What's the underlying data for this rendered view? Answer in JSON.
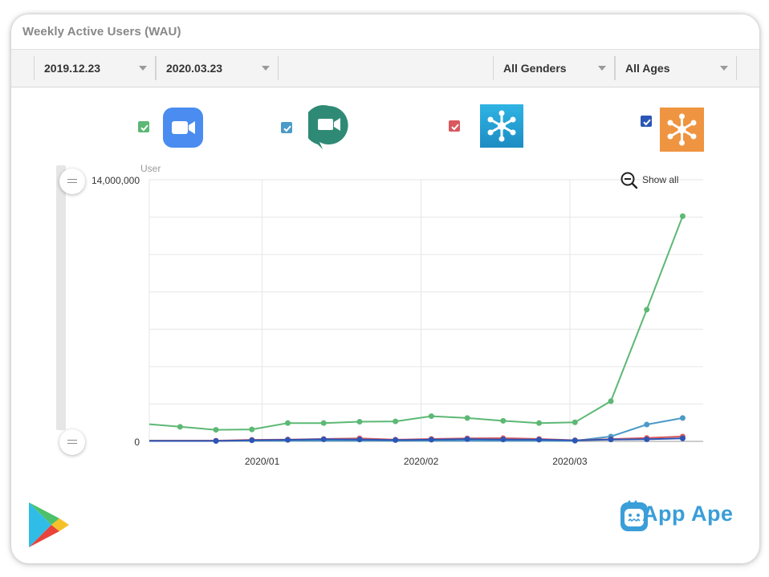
{
  "card": {
    "title": "Weekly Active Users (WAU)"
  },
  "filters": {
    "start_date": "2019.12.23",
    "end_date": "2020.03.23",
    "gender": "All Genders",
    "age": "All Ages"
  },
  "legend": [
    {
      "checkbox_color": "#5cb874",
      "checked": true,
      "icon": "zoom-icon"
    },
    {
      "checkbox_color": "#4c9ac8",
      "checked": true,
      "icon": "google-meet-icon"
    },
    {
      "checkbox_color": "#d9585e",
      "checked": true,
      "icon": "webex-meet-icon"
    },
    {
      "checkbox_color": "#2b56b5",
      "checked": true,
      "icon": "webex-teams-icon"
    }
  ],
  "show_all_label": "Show all",
  "brand": {
    "name": "App Ape",
    "store_icon": "google-play-icon"
  },
  "chart_data": {
    "type": "line",
    "ylabel": "User",
    "ylim": [
      0,
      14000000
    ],
    "y_tick_labels": [
      "0",
      "14,000,000"
    ],
    "x_tick_labels": [
      "2020/01",
      "2020/02",
      "2020/03"
    ],
    "x": [
      "2019-12-16",
      "2019-12-23",
      "2019-12-30",
      "2020-01-06",
      "2020-01-13",
      "2020-01-20",
      "2020-01-27",
      "2020-02-03",
      "2020-02-10",
      "2020-02-17",
      "2020-02-24",
      "2020-03-02",
      "2020-03-09",
      "2020-03-16",
      "2020-03-23"
    ],
    "grid": true,
    "legend_position": "top",
    "series": [
      {
        "color": "#5cb874",
        "values": [
          780000,
          620000,
          640000,
          980000,
          980000,
          1050000,
          1070000,
          1350000,
          1250000,
          1100000,
          980000,
          1020000,
          2150000,
          7050000,
          12050000
        ]
      },
      {
        "color": "#4c9ac8",
        "values": [
          null,
          null,
          null,
          null,
          null,
          null,
          null,
          null,
          null,
          null,
          null,
          30000,
          260000,
          900000,
          1250000
        ]
      },
      {
        "color": "#d9585e",
        "values": [
          null,
          40000,
          80000,
          100000,
          130000,
          160000,
          90000,
          130000,
          160000,
          170000,
          130000,
          60000,
          120000,
          180000,
          260000
        ]
      },
      {
        "color": "#2b56b5",
        "values": [
          null,
          20000,
          60000,
          80000,
          110000,
          100000,
          70000,
          90000,
          120000,
          100000,
          90000,
          50000,
          100000,
          110000,
          160000
        ]
      }
    ]
  }
}
